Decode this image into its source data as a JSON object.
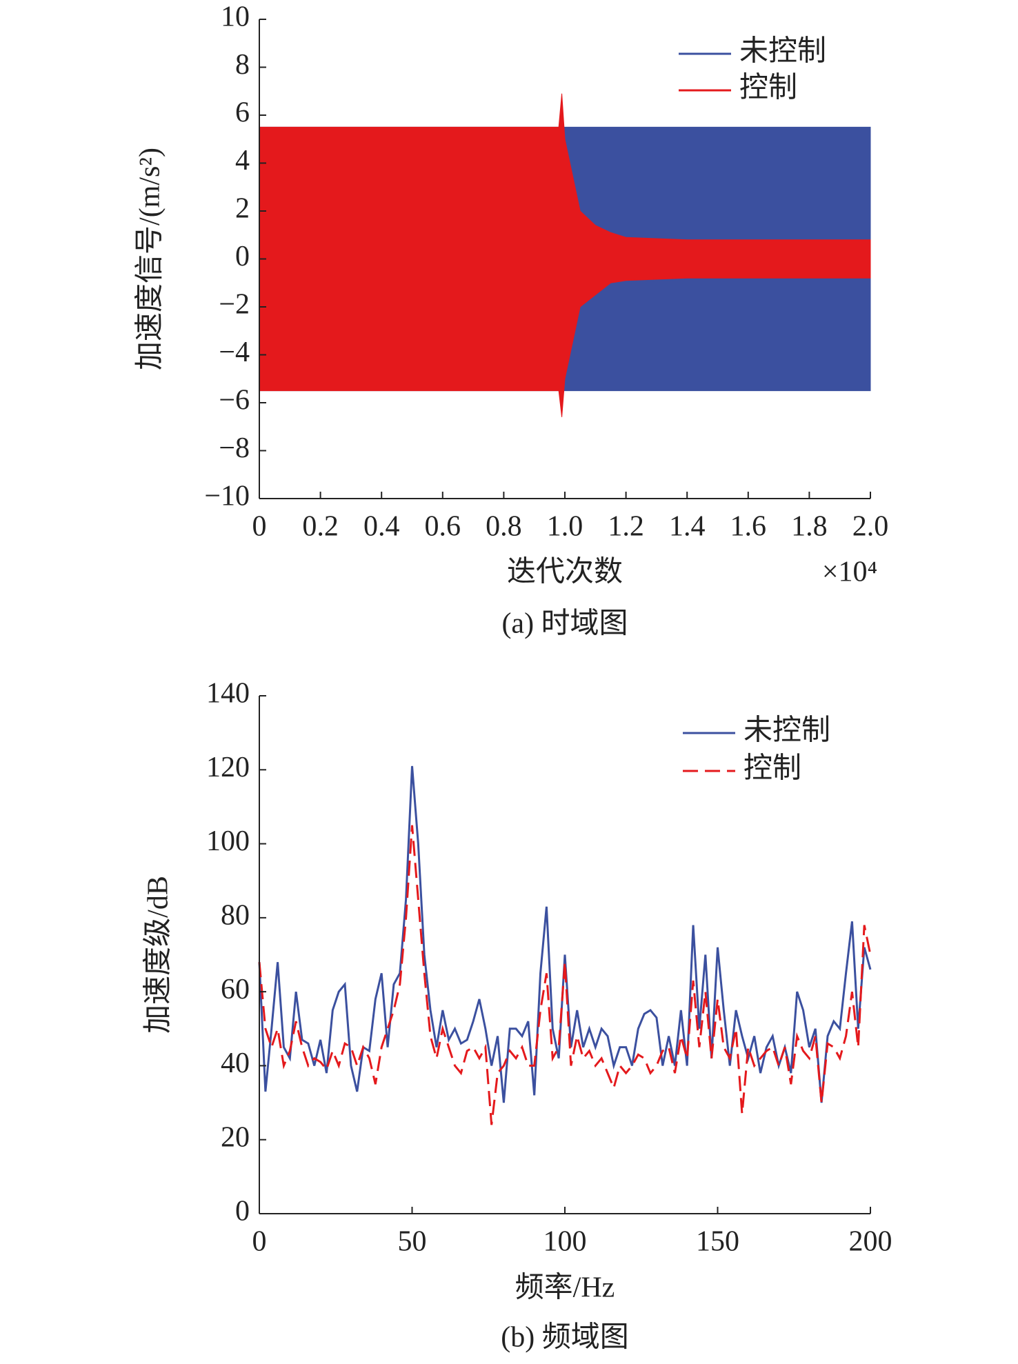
{
  "chart_data": [
    {
      "type": "band",
      "caption": "(a) 时域图",
      "xlabel": "迭代次数",
      "ylabel": "加速度信号/(m/s²)",
      "x_multiplier": "×10⁴",
      "xlim": [
        0,
        20000
      ],
      "ylim": [
        -10,
        10
      ],
      "xticks": [
        0,
        {
          "value": 2000,
          "label": "0.2"
        },
        {
          "value": 4000,
          "label": "0.4"
        },
        {
          "value": 6000,
          "label": "0.6"
        },
        {
          "value": 8000,
          "label": "0.8"
        },
        {
          "value": 10000,
          "label": "1.0"
        },
        {
          "value": 12000,
          "label": "1.2"
        },
        {
          "value": 14000,
          "label": "1.4"
        },
        {
          "value": 16000,
          "label": "1.6"
        },
        {
          "value": 18000,
          "label": "1.8"
        },
        {
          "value": 20000,
          "label": "2.0"
        }
      ],
      "yticks": [
        10,
        8,
        6,
        4,
        2,
        0,
        {
          "value": -2,
          "label": "−2"
        },
        {
          "value": -4,
          "label": "−4"
        },
        {
          "value": -6,
          "label": "−6"
        },
        {
          "value": -8,
          "label": "−8"
        },
        {
          "value": -10,
          "label": "−10"
        }
      ],
      "series": [
        {
          "name": "未控制",
          "color": "#3b509f",
          "x": [
            0,
            20000
          ],
          "upper": [
            5.5,
            5.5
          ],
          "lower": [
            -5.5,
            -5.5
          ]
        },
        {
          "name": "控制",
          "color": "#e4191c",
          "x": [
            0,
            9800,
            9900,
            10000,
            10500,
            11000,
            11500,
            12000,
            14000,
            16000,
            18000,
            20000
          ],
          "upper": [
            5.5,
            5.5,
            6.9,
            5.0,
            2.0,
            1.4,
            1.1,
            0.9,
            0.8,
            0.8,
            0.8,
            0.8
          ],
          "lower": [
            -5.5,
            -5.5,
            -6.6,
            -5.0,
            -2.0,
            -1.5,
            -1.0,
            -0.9,
            -0.8,
            -0.8,
            -0.8,
            -0.8
          ]
        }
      ]
    },
    {
      "type": "line",
      "caption": "(b) 频域图",
      "xlabel": "频率/Hz",
      "ylabel": "加速度级/dB",
      "xlim": [
        0,
        200
      ],
      "ylim": [
        0,
        140
      ],
      "xticks": [
        0,
        50,
        100,
        150,
        200
      ],
      "yticks": [
        140,
        120,
        100,
        80,
        60,
        40,
        20,
        0
      ],
      "x": [
        0,
        2,
        4,
        6,
        8,
        10,
        12,
        14,
        16,
        18,
        20,
        22,
        24,
        26,
        28,
        30,
        32,
        34,
        36,
        38,
        40,
        42,
        44,
        46,
        48,
        50,
        52,
        54,
        56,
        58,
        60,
        62,
        64,
        66,
        68,
        70,
        72,
        74,
        76,
        78,
        80,
        82,
        84,
        86,
        88,
        90,
        92,
        94,
        96,
        98,
        100,
        102,
        104,
        106,
        108,
        110,
        112,
        114,
        116,
        118,
        120,
        122,
        124,
        126,
        128,
        130,
        132,
        134,
        136,
        138,
        140,
        142,
        144,
        146,
        148,
        150,
        152,
        154,
        156,
        158,
        160,
        162,
        164,
        166,
        168,
        170,
        172,
        174,
        176,
        178,
        180,
        182,
        184,
        186,
        188,
        190,
        192,
        194,
        196,
        198,
        200
      ],
      "series": [
        {
          "name": "未控制",
          "color": "#3b509f",
          "dashed": false,
          "values": [
            68,
            33,
            50,
            68,
            45,
            42,
            60,
            47,
            46,
            40,
            47,
            38,
            55,
            60,
            62,
            40,
            33,
            45,
            44,
            58,
            65,
            45,
            62,
            65,
            85,
            121,
            100,
            70,
            55,
            45,
            55,
            47,
            50,
            46,
            47,
            52,
            58,
            50,
            40,
            48,
            30,
            50,
            50,
            48,
            52,
            32,
            65,
            83,
            50,
            42,
            70,
            45,
            55,
            45,
            50,
            45,
            50,
            48,
            40,
            45,
            45,
            40,
            50,
            54,
            55,
            53,
            40,
            48,
            40,
            55,
            40,
            78,
            50,
            70,
            42,
            72,
            55,
            40,
            55,
            48,
            42,
            48,
            38,
            45,
            48,
            40,
            45,
            38,
            60,
            55,
            45,
            50,
            30,
            48,
            52,
            50,
            65,
            79,
            50,
            72,
            66
          ]
        },
        {
          "name": "控制",
          "color": "#e4191c",
          "dashed": true,
          "values": [
            68,
            50,
            45,
            50,
            40,
            44,
            52,
            45,
            40,
            42,
            41,
            39,
            44,
            40,
            46,
            45,
            40,
            45,
            42,
            35,
            45,
            50,
            55,
            62,
            80,
            105,
            85,
            65,
            48,
            42,
            50,
            45,
            40,
            38,
            44,
            45,
            42,
            45,
            24,
            38,
            40,
            44,
            42,
            45,
            40,
            40,
            55,
            65,
            42,
            45,
            68,
            40,
            48,
            42,
            44,
            40,
            42,
            38,
            34,
            40,
            38,
            40,
            43,
            42,
            38,
            40,
            44,
            45,
            38,
            48,
            42,
            63,
            45,
            60,
            42,
            58,
            45,
            42,
            50,
            27,
            45,
            40,
            42,
            44,
            45,
            40,
            45,
            35,
            48,
            44,
            42,
            48,
            30,
            46,
            45,
            42,
            48,
            60,
            45,
            78,
            70
          ]
        }
      ]
    }
  ]
}
